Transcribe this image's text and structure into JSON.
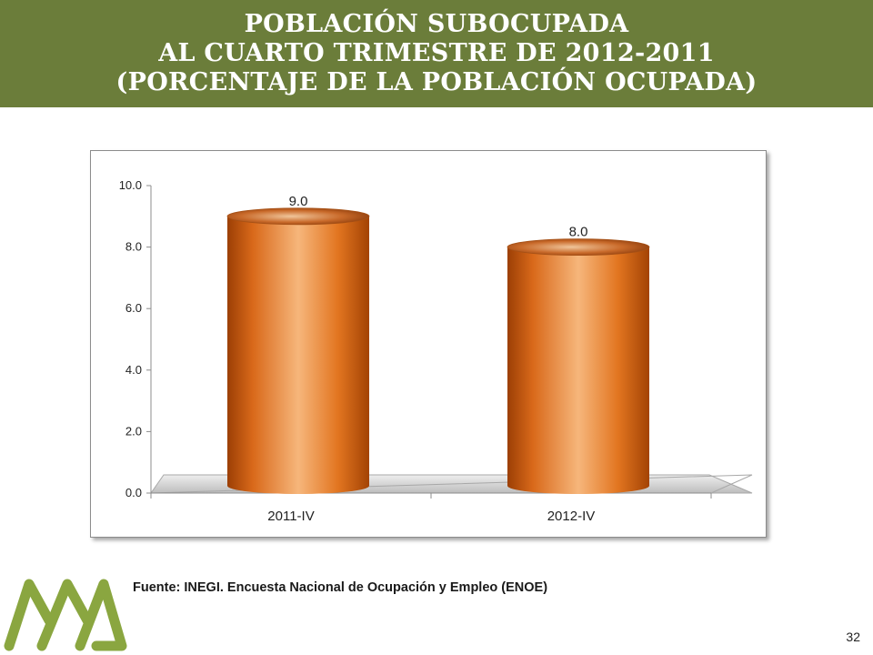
{
  "header": {
    "line1": "POBLACIÓN SUBOCUPADA",
    "line2": "AL CUARTO TRIMESTRE DE 2012-2011",
    "line3": "(PORCENTAJE DE LA POBLACIÓN OCUPADA)"
  },
  "chart_data": {
    "type": "bar",
    "categories": [
      "2011-IV",
      "2012-IV"
    ],
    "values": [
      9.0,
      8.0
    ],
    "value_labels": [
      "9.0",
      "8.0"
    ],
    "ylim": [
      0,
      10
    ],
    "yticks": [
      "0.0",
      "2.0",
      "4.0",
      "6.0",
      "8.0",
      "10.0"
    ],
    "grid": false,
    "style": "3d-cylinder",
    "bar_color": "#e07a22"
  },
  "footer": {
    "source": "Fuente: INEGI. Encuesta Nacional de Ocupación y Empleo (ENOE)",
    "page_number": "32"
  },
  "colors": {
    "header_bg": "#6b7d3a",
    "logo": "#8aa640"
  },
  "logo": {
    "icon": "triangles-logo-icon"
  }
}
